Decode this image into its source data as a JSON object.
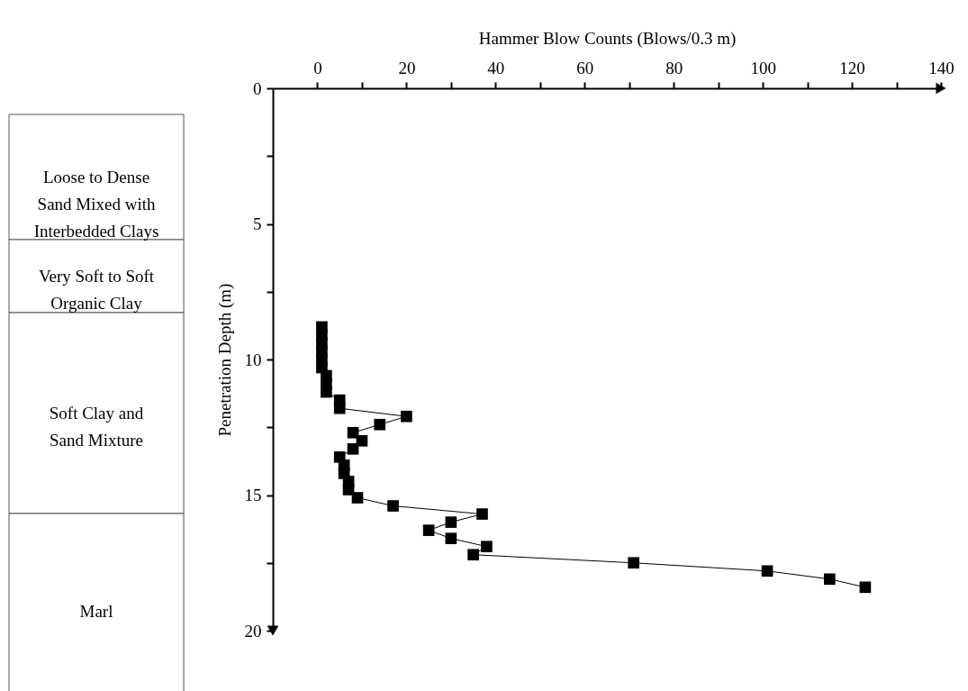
{
  "chart_data": {
    "type": "line",
    "xlabel": "Hammer Blow Counts (Blows/0.3 m)",
    "ylabel": "Penetration Depth (m)",
    "x": [
      1,
      1,
      1,
      1,
      1,
      1,
      2,
      2,
      2,
      5,
      5,
      20,
      14,
      8,
      10,
      8,
      5,
      6,
      6,
      7,
      7,
      9,
      17,
      37,
      30,
      25,
      30,
      38,
      35,
      71,
      101,
      115,
      123
    ],
    "series": [
      {
        "color": "#000000",
        "values": [
          8.8,
          9.1,
          9.4,
          9.7,
          10.0,
          10.3,
          10.6,
          10.9,
          11.2,
          11.5,
          11.8,
          12.1,
          12.4,
          12.7,
          13.0,
          13.3,
          13.6,
          13.9,
          14.2,
          14.5,
          14.8,
          15.1,
          15.4,
          15.7,
          16.0,
          16.3,
          16.6,
          16.9,
          17.2,
          17.5,
          17.8,
          18.1,
          18.4
        ]
      }
    ],
    "xlim": [
      -10,
      140
    ],
    "xticks": [
      0,
      {
        "value": 10,
        "label": null
      },
      20,
      {
        "value": 30,
        "label": null
      },
      40,
      {
        "value": 50,
        "label": null
      },
      60,
      {
        "value": 70,
        "label": null
      },
      80,
      {
        "value": 90,
        "label": null
      },
      100,
      {
        "value": 110,
        "label": null
      },
      120,
      {
        "value": 130,
        "label": null
      },
      140
    ],
    "ylim": [
      20,
      0
    ],
    "yticks": [
      0,
      {
        "value": 2.5,
        "label": null
      },
      5,
      {
        "value": 7.5,
        "label": null
      },
      10,
      {
        "value": 12.5,
        "label": null
      },
      15,
      {
        "value": 17.5,
        "label": null
      },
      20
    ],
    "annotations": [
      "Loose to Dense Sand Mixed with Interbedded Clays",
      "Very Soft to Soft Organic Clay",
      "Soft Clay and Sand Mixture",
      "Marl"
    ],
    "marker": "square",
    "line_style": "solid",
    "grid": false
  }
}
